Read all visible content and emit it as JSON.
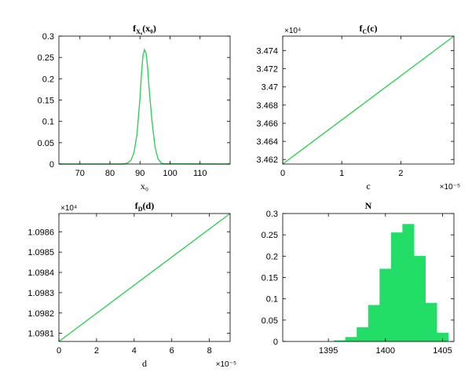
{
  "chart_data": [
    {
      "type": "line",
      "title": "f_X0(x0)",
      "title_main": "f",
      "title_sub": "X₀",
      "title_arg": "(x₀)",
      "xlabel": "x₀",
      "ylabel": "",
      "xlim": [
        63,
        120
      ],
      "ylim": [
        0,
        0.3
      ],
      "xticks": [
        70,
        80,
        90,
        100,
        110
      ],
      "yticks": [
        0,
        0.05,
        0.1,
        0.15,
        0.2,
        0.25,
        0.3
      ],
      "x_exponent": "",
      "y_exponent": "",
      "grid": false,
      "color": "#2fd05a",
      "series": [
        {
          "x": [
            63,
            84,
            85,
            86,
            87,
            88,
            89,
            90,
            90.5,
            91,
            91.5,
            92,
            92.5,
            93,
            94,
            95,
            96,
            97,
            98,
            120
          ],
          "y": [
            0,
            0,
            0.001,
            0.003,
            0.009,
            0.027,
            0.07,
            0.155,
            0.213,
            0.255,
            0.268,
            0.26,
            0.23,
            0.18,
            0.1,
            0.04,
            0.012,
            0.003,
            0.0005,
            0
          ]
        }
      ]
    },
    {
      "type": "line",
      "title": "f_C(c)",
      "title_main": "f",
      "title_sub": "C",
      "title_arg": "(c)",
      "xlabel": "c",
      "ylabel": "",
      "xlim": [
        0,
        2.9
      ],
      "ylim": [
        3.4615,
        3.4756
      ],
      "xticks": [
        0,
        1,
        2
      ],
      "yticks": [
        3.462,
        3.464,
        3.466,
        3.468,
        3.47,
        3.472,
        3.474
      ],
      "x_exponent": "×10⁻⁵",
      "y_exponent": "×10⁴",
      "grid": false,
      "color": "#2fd05a",
      "series": [
        {
          "x": [
            0,
            2.9
          ],
          "y": [
            3.4615,
            3.4756
          ]
        }
      ]
    },
    {
      "type": "line",
      "title": "f_D(d)",
      "title_main": "f",
      "title_sub": "D",
      "title_arg": "(d)",
      "xlabel": "d",
      "ylabel": "",
      "xlim": [
        0,
        9.1
      ],
      "ylim": [
        1.09806,
        1.09869
      ],
      "xticks": [
        0,
        2,
        4,
        6,
        8
      ],
      "yticks": [
        1.0981,
        1.0982,
        1.0983,
        1.0984,
        1.0985,
        1.0986
      ],
      "x_exponent": "×10⁻⁵",
      "y_exponent": "×10⁴",
      "grid": false,
      "color": "#2fd05a",
      "series": [
        {
          "x": [
            0,
            9.1
          ],
          "y": [
            1.09806,
            1.09869
          ]
        }
      ]
    },
    {
      "type": "bar",
      "title": "N",
      "title_main": "N",
      "title_sub": "",
      "title_arg": "",
      "xlabel": "",
      "ylabel": "",
      "xlim": [
        1391,
        1406
      ],
      "ylim": [
        0,
        0.3
      ],
      "xticks": [
        1395,
        1400,
        1405
      ],
      "yticks": [
        0,
        0.05,
        0.1,
        0.15,
        0.2,
        0.25,
        0.3
      ],
      "x_exponent": "",
      "y_exponent": "",
      "grid": false,
      "color": "#22dd66",
      "categories": [
        1396,
        1397,
        1398,
        1399,
        1400,
        1401,
        1402,
        1403,
        1404,
        1405
      ],
      "values": [
        0.002,
        0.01,
        0.033,
        0.085,
        0.17,
        0.255,
        0.275,
        0.2,
        0.09,
        0.02
      ]
    }
  ]
}
